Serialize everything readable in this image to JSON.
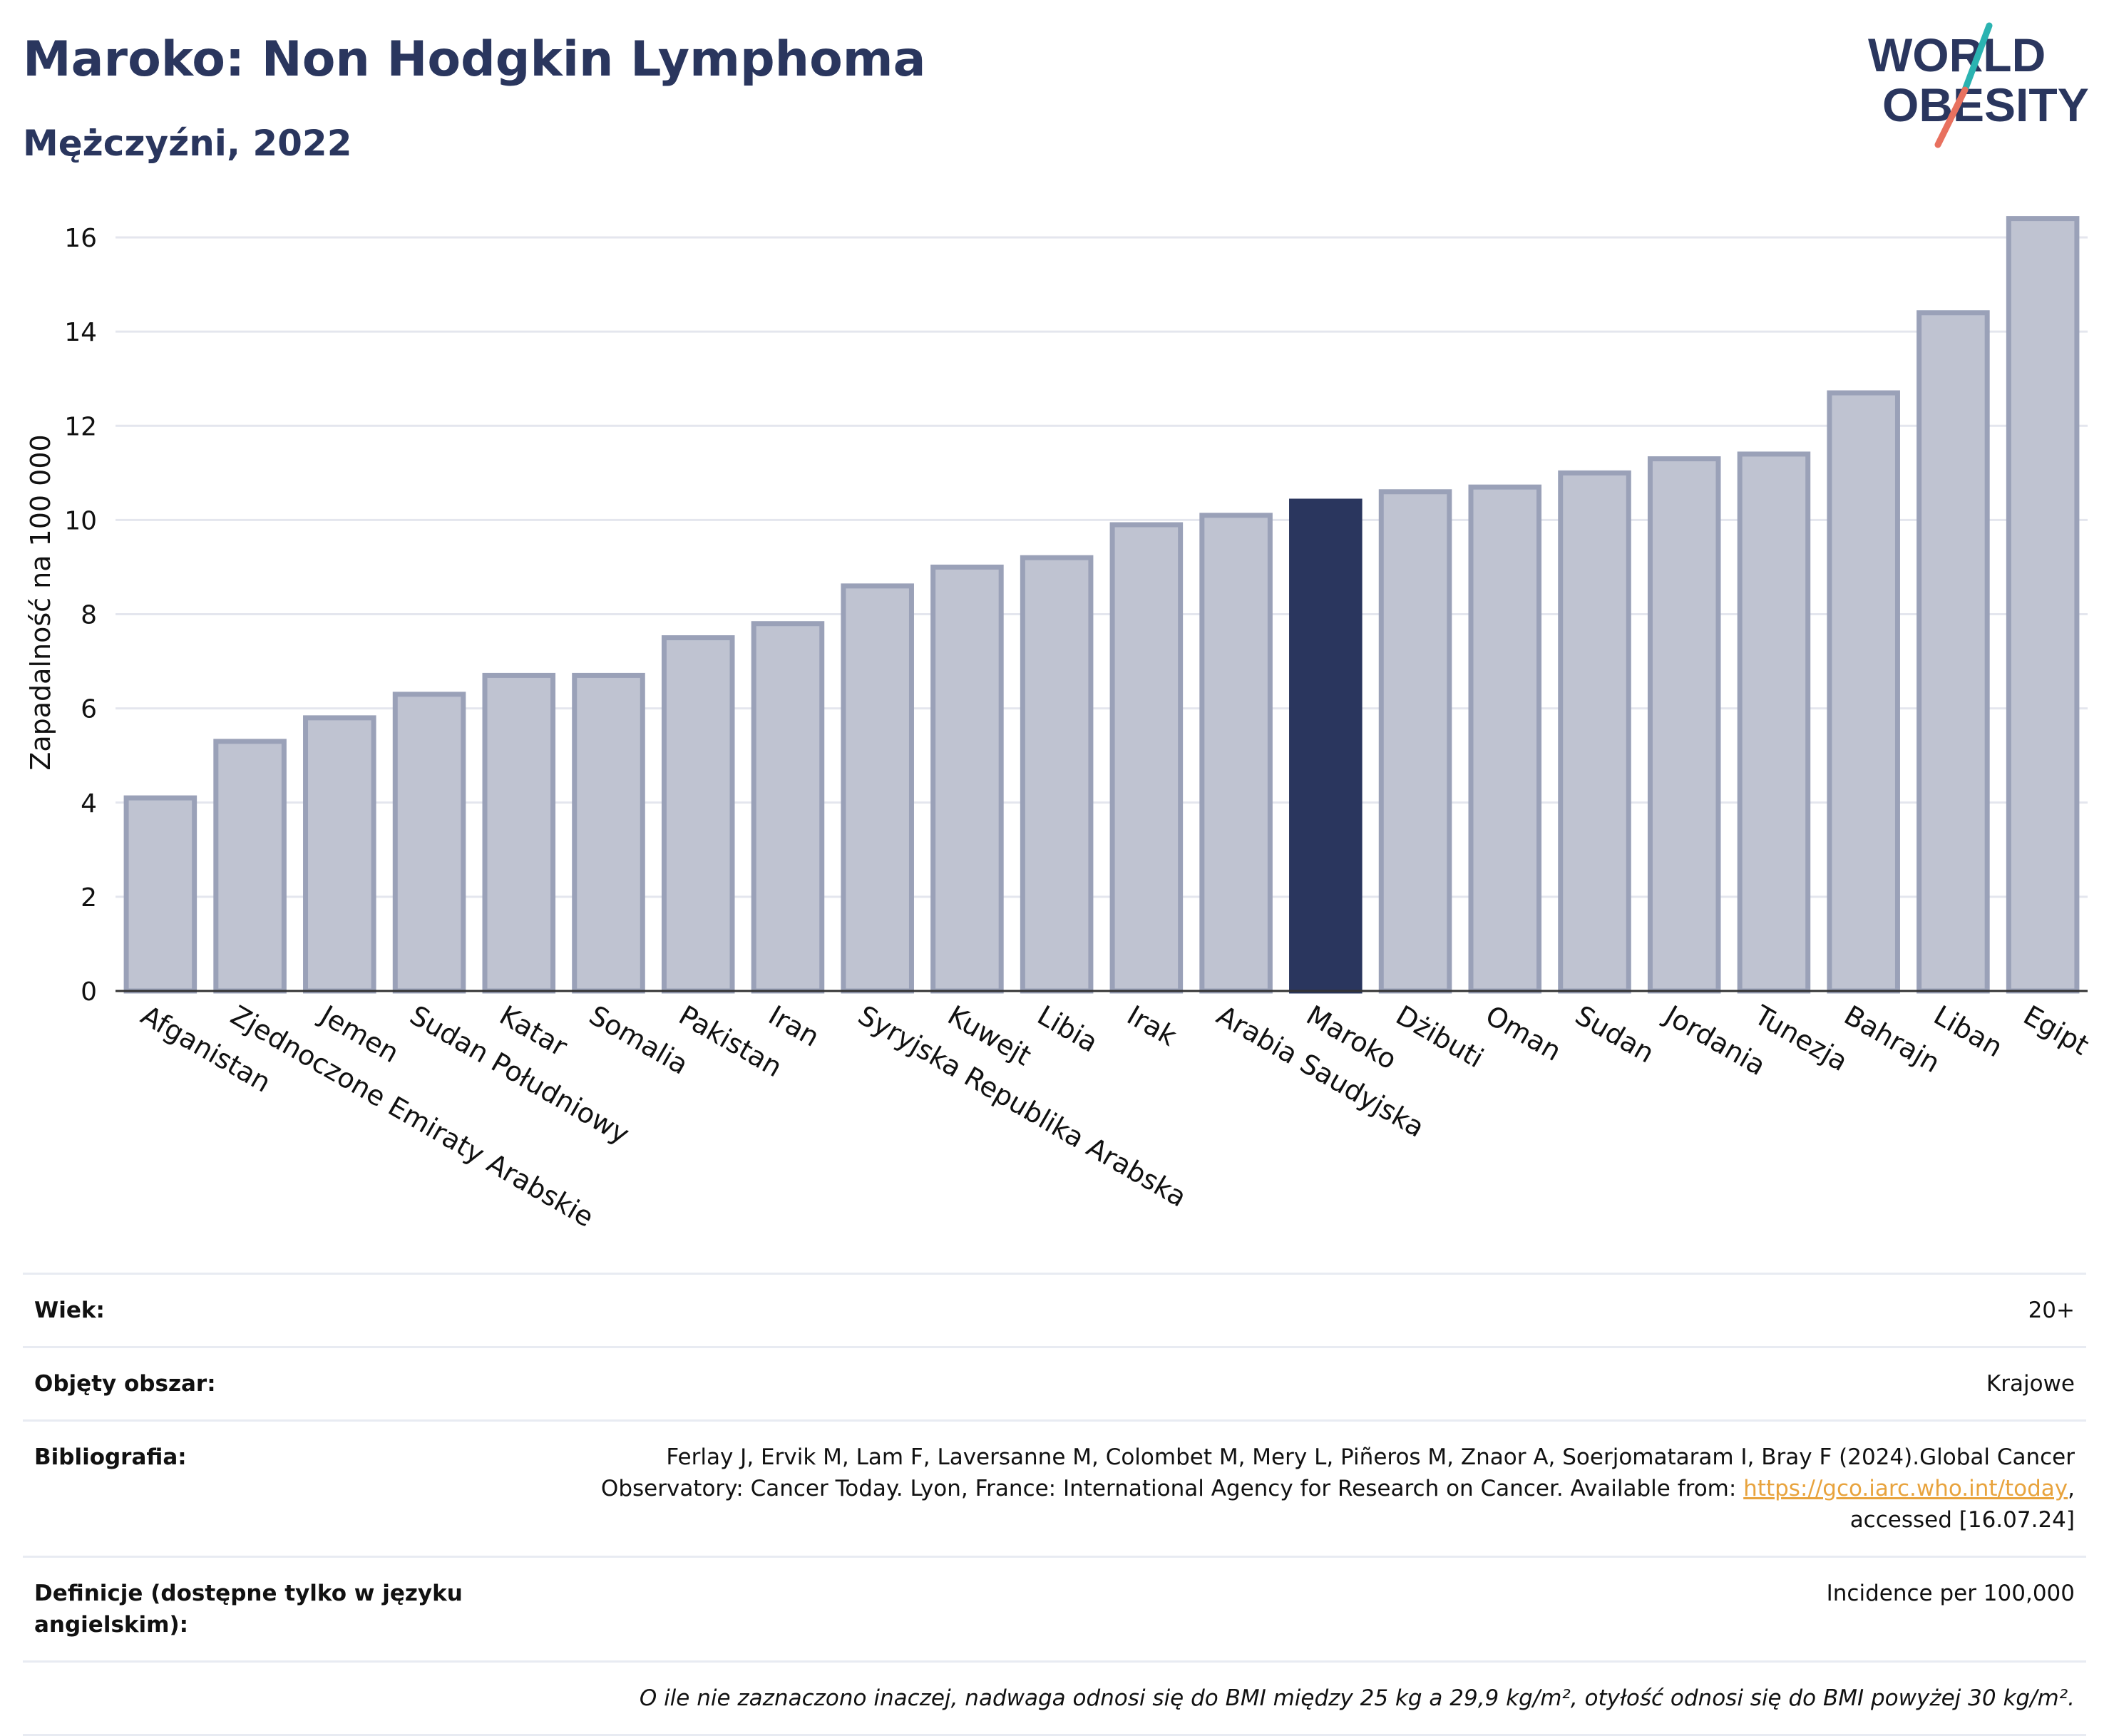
{
  "title": "Maroko: Non Hodgkin Lymphoma",
  "subtitle": "Mężczyźni, 2022",
  "logo": {
    "line1": "WORLD",
    "line2": "OBESITY"
  },
  "colors": {
    "bar": "#bfc3d1",
    "bar_border": "#9aa1b8",
    "highlight": "#2a365e",
    "text": "#2a365e"
  },
  "chart_data": {
    "type": "bar",
    "ylabel": "Zapadalność na 100 000",
    "ylim": [
      0,
      16.5
    ],
    "yticks": [
      0,
      2,
      4,
      6,
      8,
      10,
      12,
      14,
      16
    ],
    "grid": true,
    "highlight": "Maroko",
    "categories": [
      "Afganistan",
      "Zjednoczone Emiraty Arabskie",
      "Jemen",
      "Sudan Południowy",
      "Katar",
      "Somalia",
      "Pakistan",
      "Iran",
      "Syryjska Republika Arabska",
      "Kuwejt",
      "Libia",
      "Irak",
      "Arabia Saudyjska",
      "Maroko",
      "Dżibuti",
      "Oman",
      "Sudan",
      "Jordania",
      "Tunezja",
      "Bahrajn",
      "Liban",
      "Egipt"
    ],
    "values": [
      4.1,
      5.3,
      5.8,
      6.3,
      6.7,
      6.7,
      7.5,
      7.8,
      8.6,
      9.0,
      9.2,
      9.9,
      10.1,
      10.4,
      10.6,
      10.7,
      11.0,
      11.3,
      11.4,
      12.7,
      14.4,
      16.4
    ]
  },
  "meta": {
    "age_label": "Wiek:",
    "age_value": "20+",
    "coverage_label": "Objęty obszar:",
    "coverage_value": "Krajowe",
    "bib_label": "Bibliografia:",
    "bib_line1": "Ferlay J, Ervik M, Lam F, Laversanne M, Colombet M, Mery L, Piñeros M, Znaor A, Soerjomataram I, Bray F (2024).Global Cancer",
    "bib_line2_pre": "Observatory: Cancer Today. Lyon, France: International Agency for Research on Cancer. Available from: ",
    "bib_link": "https://gco.iarc.who.int/today",
    "bib_line2_post": ",",
    "bib_line3": "accessed [16.07.24]",
    "def_label": "Definicje (dostępne tylko w języku angielskim):",
    "def_value": "Incidence per 100,000",
    "note": "O ile nie zaznaczono inaczej, nadwaga odnosi się do BMI między 25 kg a 29,9 kg/m², otyłość odnosi się do BMI powyżej 30 kg/m²."
  }
}
